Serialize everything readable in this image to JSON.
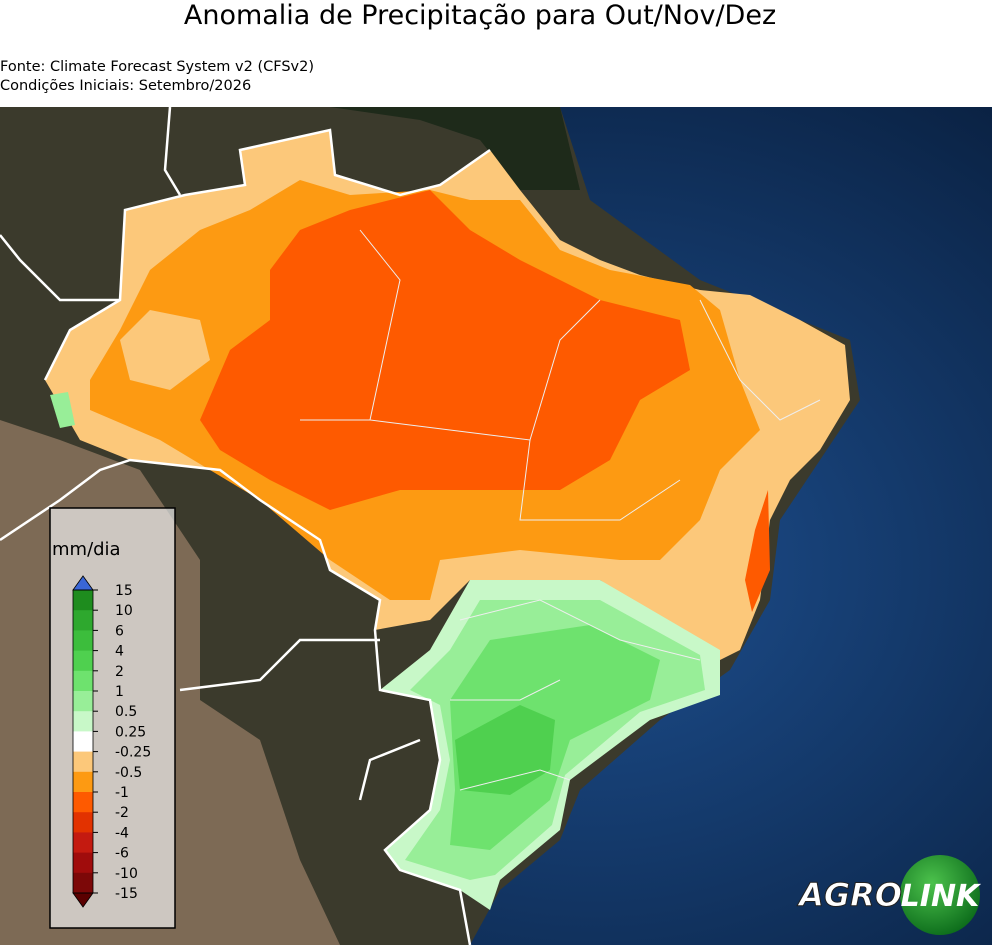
{
  "header": {
    "title": "Anomalia de Precipitação para Out/Nov/Dez",
    "source": "Fonte: Climate Forecast System v2 (CFSv2)",
    "initial_conditions": "Condições Iniciais: Setembro/2026"
  },
  "legend": {
    "label": "mm/dia",
    "ticks": [
      15,
      10,
      6,
      4,
      2,
      1,
      0.5,
      0.25,
      -0.25,
      -0.5,
      -1,
      -2,
      -4,
      -6,
      -10,
      -15
    ],
    "colors": [
      "#1e8c1e",
      "#2ea82e",
      "#3cbd3c",
      "#4fd04f",
      "#6ee26e",
      "#98ee98",
      "#c8f8c8",
      "#ffffff",
      "#fcc87a",
      "#fd9a12",
      "#fe5a00",
      "#e23200",
      "#c41a10",
      "#a00c0c",
      "#7c0808"
    ],
    "over_color": "#3a66d6",
    "under_color": "#5a0000"
  },
  "logo": {
    "left": "AGRO",
    "right": "LINK"
  }
}
